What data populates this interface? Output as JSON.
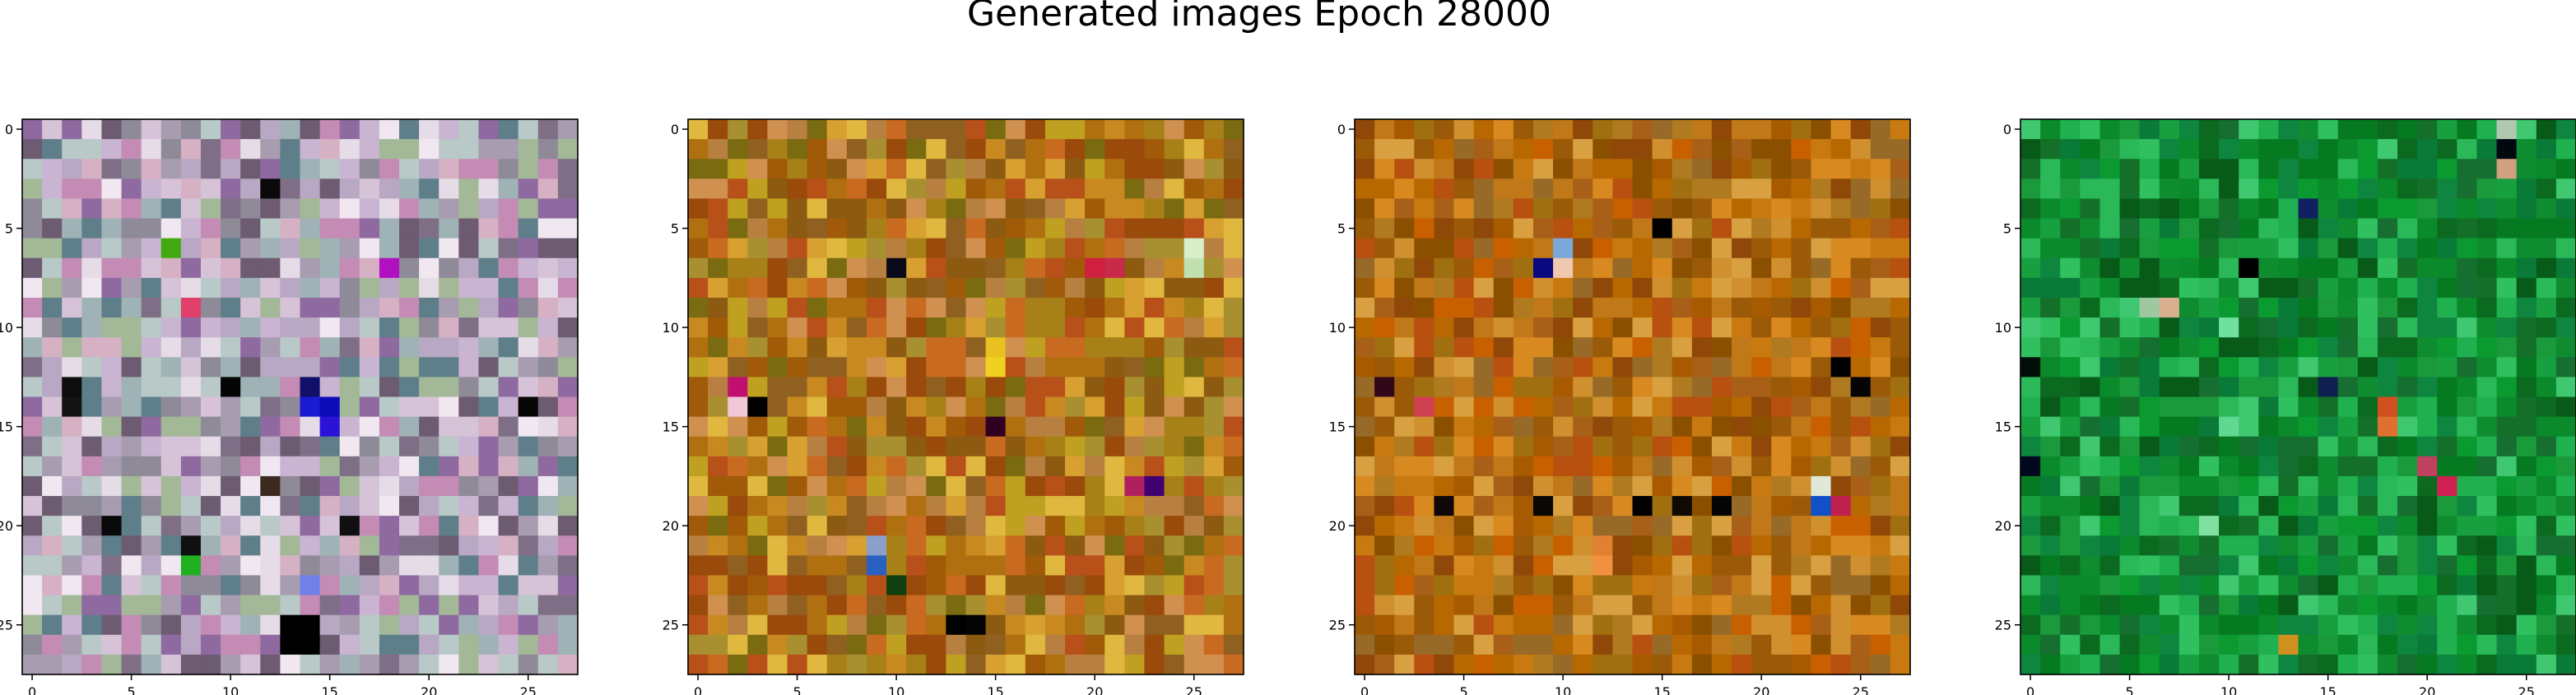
{
  "chart_data": {
    "type": "heatmap",
    "title": "Generated images Epoch 28000",
    "grid": false,
    "rows": 28,
    "cols": 28,
    "x_ticks": [
      0,
      5,
      10,
      15,
      20,
      25
    ],
    "y_ticks": [
      0,
      5,
      10,
      15,
      20,
      25
    ],
    "panels": [
      {
        "palette": [
          "#b9a8c3",
          "#c9b4d1",
          "#a79cb0",
          "#d7c3d8",
          "#8f8a98",
          "#e5dce8",
          "#9fb2b6",
          "#b8c9c7",
          "#7f6f86",
          "#d6b1c4",
          "#c48bb4",
          "#8e6aa0",
          "#6d5b72",
          "#f0e7f0",
          "#5e7f8a",
          "#a3b897"
        ],
        "accents": [
          {
            "row": 25,
            "col": 13,
            "color": "#000000"
          },
          {
            "row": 25,
            "col": 14,
            "color": "#000000"
          },
          {
            "row": 26,
            "col": 13,
            "color": "#000000"
          },
          {
            "row": 26,
            "col": 14,
            "color": "#000000"
          },
          {
            "row": 14,
            "col": 14,
            "color": "#1a1ad0"
          },
          {
            "row": 14,
            "col": 15,
            "color": "#0c0cb8"
          },
          {
            "row": 15,
            "col": 15,
            "color": "#2a12d6"
          },
          {
            "row": 13,
            "col": 14,
            "color": "#10106a"
          },
          {
            "row": 13,
            "col": 2,
            "color": "#0d0d0d"
          },
          {
            "row": 14,
            "col": 2,
            "color": "#141414"
          },
          {
            "row": 13,
            "col": 10,
            "color": "#050505"
          },
          {
            "row": 14,
            "col": 25,
            "color": "#060606"
          },
          {
            "row": 7,
            "col": 18,
            "color": "#b010c0"
          },
          {
            "row": 3,
            "col": 12,
            "color": "#0a0a0a"
          },
          {
            "row": 20,
            "col": 4,
            "color": "#090909"
          },
          {
            "row": 21,
            "col": 8,
            "color": "#101010"
          },
          {
            "row": 9,
            "col": 8,
            "color": "#e0406a"
          },
          {
            "row": 6,
            "col": 7,
            "color": "#40aa10"
          },
          {
            "row": 22,
            "col": 8,
            "color": "#20b020"
          },
          {
            "row": 23,
            "col": 14,
            "color": "#7080e8"
          },
          {
            "row": 20,
            "col": 16,
            "color": "#101010"
          },
          {
            "row": 18,
            "col": 12,
            "color": "#3a2a20"
          }
        ]
      },
      {
        "palette": [
          "#b07010",
          "#c88a20",
          "#a05a08",
          "#d8a030",
          "#8c5a10",
          "#c0a020",
          "#b88040",
          "#9a4a0a",
          "#d09050",
          "#a88018",
          "#7a6a10",
          "#c86a20",
          "#e0b840",
          "#906020",
          "#b8501a",
          "#a89030"
        ],
        "accents": [
          {
            "row": 25,
            "col": 13,
            "color": "#000000"
          },
          {
            "row": 25,
            "col": 14,
            "color": "#050505"
          },
          {
            "row": 22,
            "col": 9,
            "color": "#2a60c0"
          },
          {
            "row": 21,
            "col": 9,
            "color": "#8aa0c8"
          },
          {
            "row": 7,
            "col": 10,
            "color": "#0a0a18"
          },
          {
            "row": 14,
            "col": 2,
            "color": "#f0c8d8"
          },
          {
            "row": 13,
            "col": 2,
            "color": "#c01070"
          },
          {
            "row": 14,
            "col": 3,
            "color": "#000000"
          },
          {
            "row": 18,
            "col": 23,
            "color": "#400070"
          },
          {
            "row": 18,
            "col": 22,
            "color": "#b02060"
          },
          {
            "row": 6,
            "col": 25,
            "color": "#d8f0c8"
          },
          {
            "row": 7,
            "col": 25,
            "color": "#c0e0b0"
          },
          {
            "row": 15,
            "col": 15,
            "color": "#300020"
          },
          {
            "row": 23,
            "col": 10,
            "color": "#104010"
          },
          {
            "row": 7,
            "col": 20,
            "color": "#d02040"
          },
          {
            "row": 7,
            "col": 21,
            "color": "#c82a4a"
          },
          {
            "row": 11,
            "col": 15,
            "color": "#e8c020"
          },
          {
            "row": 12,
            "col": 15,
            "color": "#f0d020"
          }
        ]
      },
      {
        "palette": [
          "#b86800",
          "#c87a10",
          "#a85a00",
          "#d88a20",
          "#9a5a08",
          "#b07a20",
          "#c86000",
          "#8a5000",
          "#d09030",
          "#a07010",
          "#b85010",
          "#986a28",
          "#c07818",
          "#904808",
          "#d8a040",
          "#a86018"
        ],
        "accents": [
          {
            "row": 7,
            "col": 9,
            "color": "#0a0a80"
          },
          {
            "row": 6,
            "col": 10,
            "color": "#7aa8d8"
          },
          {
            "row": 7,
            "col": 10,
            "color": "#f0c8b0"
          },
          {
            "row": 5,
            "col": 15,
            "color": "#000000"
          },
          {
            "row": 19,
            "col": 4,
            "color": "#100808"
          },
          {
            "row": 19,
            "col": 9,
            "color": "#0a0805"
          },
          {
            "row": 19,
            "col": 14,
            "color": "#000000"
          },
          {
            "row": 19,
            "col": 16,
            "color": "#100a05"
          },
          {
            "row": 19,
            "col": 18,
            "color": "#050505"
          },
          {
            "row": 18,
            "col": 23,
            "color": "#e0e8d8"
          },
          {
            "row": 19,
            "col": 23,
            "color": "#1050c8"
          },
          {
            "row": 19,
            "col": 24,
            "color": "#c02050"
          },
          {
            "row": 12,
            "col": 24,
            "color": "#000000"
          },
          {
            "row": 13,
            "col": 25,
            "color": "#050505"
          },
          {
            "row": 13,
            "col": 1,
            "color": "#300818"
          },
          {
            "row": 14,
            "col": 3,
            "color": "#d04050"
          },
          {
            "row": 21,
            "col": 12,
            "color": "#e08030"
          },
          {
            "row": 22,
            "col": 12,
            "color": "#f09040"
          }
        ]
      },
      {
        "palette": [
          "#0a8a2a",
          "#108c30",
          "#067a20",
          "#18a040",
          "#0c6a20",
          "#20b050",
          "#0a7a38",
          "#147028",
          "#2ab858",
          "#085a18",
          "#1a9a3a",
          "#30c060",
          "#0e8640",
          "#166e30",
          "#40c870",
          "#0a9a30"
        ],
        "accents": [
          {
            "row": 0,
            "col": 24,
            "color": "#b0c8b0"
          },
          {
            "row": 1,
            "col": 24,
            "color": "#000810"
          },
          {
            "row": 2,
            "col": 24,
            "color": "#d0a080"
          },
          {
            "row": 4,
            "col": 14,
            "color": "#102060"
          },
          {
            "row": 9,
            "col": 6,
            "color": "#a0c8a0"
          },
          {
            "row": 9,
            "col": 7,
            "color": "#d8b090"
          },
          {
            "row": 7,
            "col": 11,
            "color": "#000000"
          },
          {
            "row": 13,
            "col": 15,
            "color": "#102050"
          },
          {
            "row": 14,
            "col": 18,
            "color": "#d05020"
          },
          {
            "row": 15,
            "col": 18,
            "color": "#e07030"
          },
          {
            "row": 18,
            "col": 21,
            "color": "#d02050"
          },
          {
            "row": 17,
            "col": 20,
            "color": "#c04060"
          },
          {
            "row": 26,
            "col": 13,
            "color": "#d09020"
          },
          {
            "row": 17,
            "col": 0,
            "color": "#000820"
          },
          {
            "row": 12,
            "col": 0,
            "color": "#001008"
          },
          {
            "row": 20,
            "col": 9,
            "color": "#80e0a0"
          },
          {
            "row": 15,
            "col": 10,
            "color": "#60d890"
          },
          {
            "row": 10,
            "col": 10,
            "color": "#70e0a0"
          }
        ]
      }
    ]
  }
}
